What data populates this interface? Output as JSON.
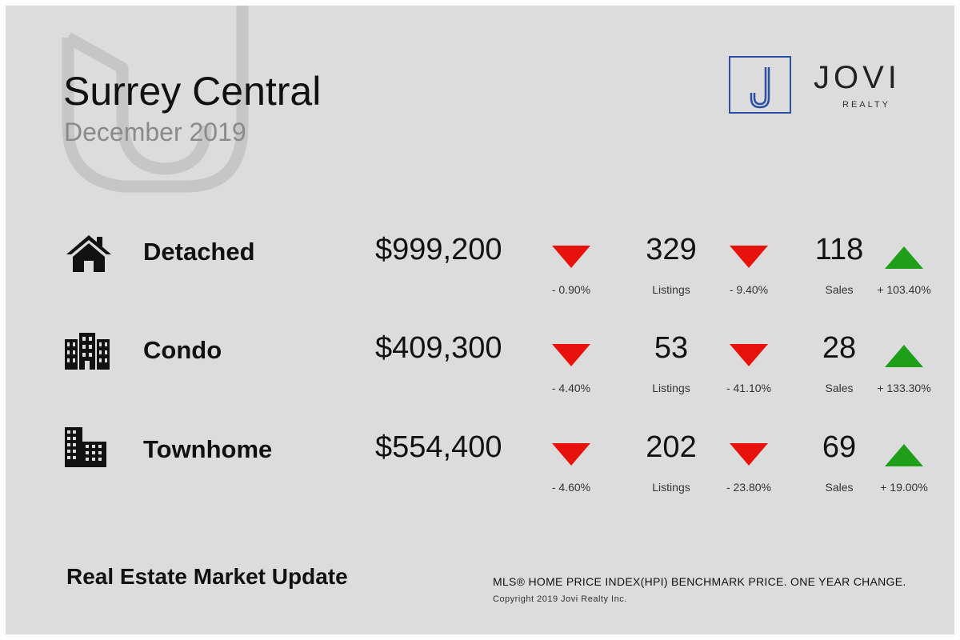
{
  "header": {
    "title": "Surrey Central",
    "subtitle": "December 2019"
  },
  "logo": {
    "name": "JOVI",
    "sub": "REALTY",
    "monogram": "J",
    "color": "#2d4fa1"
  },
  "rows": [
    {
      "icon": "house-icon",
      "type": "Detached",
      "price": "$999,200",
      "price_change": "- 0.90%",
      "price_trend": "down",
      "listings": "329",
      "listings_label": "Listings",
      "listings_change": "- 9.40%",
      "listings_trend": "down",
      "sales": "118",
      "sales_label": "Sales",
      "sales_change": "+ 103.40%",
      "sales_trend": "up"
    },
    {
      "icon": "condo-building-icon",
      "type": "Condo",
      "price": "$409,300",
      "price_change": "- 4.40%",
      "price_trend": "down",
      "listings": "53",
      "listings_label": "Listings",
      "listings_change": "- 41.10%",
      "listings_trend": "down",
      "sales": "28",
      "sales_label": "Sales",
      "sales_change": "+ 133.30%",
      "sales_trend": "up"
    },
    {
      "icon": "townhome-buildings-icon",
      "type": "Townhome",
      "price": "$554,400",
      "price_change": "- 4.60%",
      "price_trend": "down",
      "listings": "202",
      "listings_label": "Listings",
      "listings_change": "- 23.80%",
      "listings_trend": "down",
      "sales": "69",
      "sales_label": "Sales",
      "sales_change": "+ 19.00%",
      "sales_trend": "up"
    }
  ],
  "footer": {
    "title": "Real Estate Market Update",
    "note": "MLS® HOME PRICE INDEX(HPI) BENCHMARK PRICE. ONE YEAR CHANGE.",
    "copyright": "Copyright 2019 Jovi Realty Inc."
  },
  "colors": {
    "background": "#dcdcdc",
    "down": "#e8120c",
    "up": "#1f9e1a",
    "watermark": "#c6c6c6"
  }
}
